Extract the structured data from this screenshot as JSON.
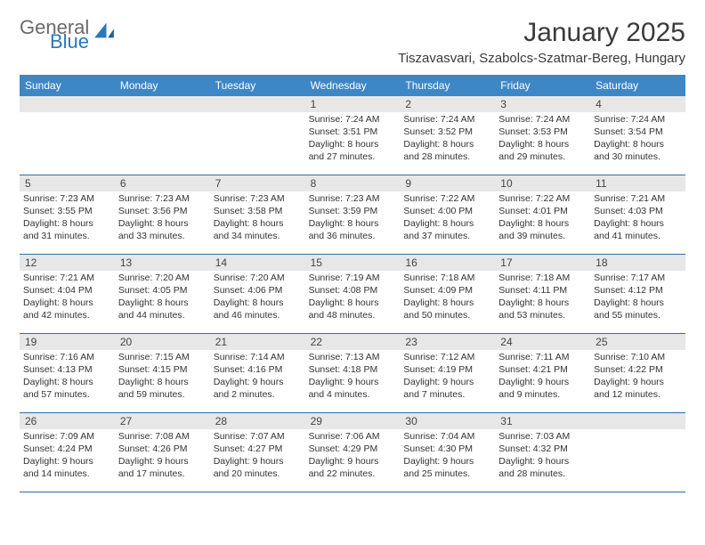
{
  "brand": {
    "word1": "General",
    "word2": "Blue"
  },
  "colors": {
    "accent": "#3d87c7",
    "header_text": "#ffffff",
    "daynum_bg": "#e7e7e7",
    "rule": "#2e6da4",
    "logo_gray": "#6a6a6a",
    "logo_blue": "#2a77bd"
  },
  "title": "January 2025",
  "location": "Tiszavasvari, Szabolcs-Szatmar-Bereg, Hungary",
  "dow": [
    "Sunday",
    "Monday",
    "Tuesday",
    "Wednesday",
    "Thursday",
    "Friday",
    "Saturday"
  ],
  "weeks": [
    [
      {
        "n": "",
        "lines": []
      },
      {
        "n": "",
        "lines": []
      },
      {
        "n": "",
        "lines": []
      },
      {
        "n": "1",
        "lines": [
          "Sunrise: 7:24 AM",
          "Sunset: 3:51 PM",
          "Daylight: 8 hours",
          "and 27 minutes."
        ]
      },
      {
        "n": "2",
        "lines": [
          "Sunrise: 7:24 AM",
          "Sunset: 3:52 PM",
          "Daylight: 8 hours",
          "and 28 minutes."
        ]
      },
      {
        "n": "3",
        "lines": [
          "Sunrise: 7:24 AM",
          "Sunset: 3:53 PM",
          "Daylight: 8 hours",
          "and 29 minutes."
        ]
      },
      {
        "n": "4",
        "lines": [
          "Sunrise: 7:24 AM",
          "Sunset: 3:54 PM",
          "Daylight: 8 hours",
          "and 30 minutes."
        ]
      }
    ],
    [
      {
        "n": "5",
        "lines": [
          "Sunrise: 7:23 AM",
          "Sunset: 3:55 PM",
          "Daylight: 8 hours",
          "and 31 minutes."
        ]
      },
      {
        "n": "6",
        "lines": [
          "Sunrise: 7:23 AM",
          "Sunset: 3:56 PM",
          "Daylight: 8 hours",
          "and 33 minutes."
        ]
      },
      {
        "n": "7",
        "lines": [
          "Sunrise: 7:23 AM",
          "Sunset: 3:58 PM",
          "Daylight: 8 hours",
          "and 34 minutes."
        ]
      },
      {
        "n": "8",
        "lines": [
          "Sunrise: 7:23 AM",
          "Sunset: 3:59 PM",
          "Daylight: 8 hours",
          "and 36 minutes."
        ]
      },
      {
        "n": "9",
        "lines": [
          "Sunrise: 7:22 AM",
          "Sunset: 4:00 PM",
          "Daylight: 8 hours",
          "and 37 minutes."
        ]
      },
      {
        "n": "10",
        "lines": [
          "Sunrise: 7:22 AM",
          "Sunset: 4:01 PM",
          "Daylight: 8 hours",
          "and 39 minutes."
        ]
      },
      {
        "n": "11",
        "lines": [
          "Sunrise: 7:21 AM",
          "Sunset: 4:03 PM",
          "Daylight: 8 hours",
          "and 41 minutes."
        ]
      }
    ],
    [
      {
        "n": "12",
        "lines": [
          "Sunrise: 7:21 AM",
          "Sunset: 4:04 PM",
          "Daylight: 8 hours",
          "and 42 minutes."
        ]
      },
      {
        "n": "13",
        "lines": [
          "Sunrise: 7:20 AM",
          "Sunset: 4:05 PM",
          "Daylight: 8 hours",
          "and 44 minutes."
        ]
      },
      {
        "n": "14",
        "lines": [
          "Sunrise: 7:20 AM",
          "Sunset: 4:06 PM",
          "Daylight: 8 hours",
          "and 46 minutes."
        ]
      },
      {
        "n": "15",
        "lines": [
          "Sunrise: 7:19 AM",
          "Sunset: 4:08 PM",
          "Daylight: 8 hours",
          "and 48 minutes."
        ]
      },
      {
        "n": "16",
        "lines": [
          "Sunrise: 7:18 AM",
          "Sunset: 4:09 PM",
          "Daylight: 8 hours",
          "and 50 minutes."
        ]
      },
      {
        "n": "17",
        "lines": [
          "Sunrise: 7:18 AM",
          "Sunset: 4:11 PM",
          "Daylight: 8 hours",
          "and 53 minutes."
        ]
      },
      {
        "n": "18",
        "lines": [
          "Sunrise: 7:17 AM",
          "Sunset: 4:12 PM",
          "Daylight: 8 hours",
          "and 55 minutes."
        ]
      }
    ],
    [
      {
        "n": "19",
        "lines": [
          "Sunrise: 7:16 AM",
          "Sunset: 4:13 PM",
          "Daylight: 8 hours",
          "and 57 minutes."
        ]
      },
      {
        "n": "20",
        "lines": [
          "Sunrise: 7:15 AM",
          "Sunset: 4:15 PM",
          "Daylight: 8 hours",
          "and 59 minutes."
        ]
      },
      {
        "n": "21",
        "lines": [
          "Sunrise: 7:14 AM",
          "Sunset: 4:16 PM",
          "Daylight: 9 hours",
          "and 2 minutes."
        ]
      },
      {
        "n": "22",
        "lines": [
          "Sunrise: 7:13 AM",
          "Sunset: 4:18 PM",
          "Daylight: 9 hours",
          "and 4 minutes."
        ]
      },
      {
        "n": "23",
        "lines": [
          "Sunrise: 7:12 AM",
          "Sunset: 4:19 PM",
          "Daylight: 9 hours",
          "and 7 minutes."
        ]
      },
      {
        "n": "24",
        "lines": [
          "Sunrise: 7:11 AM",
          "Sunset: 4:21 PM",
          "Daylight: 9 hours",
          "and 9 minutes."
        ]
      },
      {
        "n": "25",
        "lines": [
          "Sunrise: 7:10 AM",
          "Sunset: 4:22 PM",
          "Daylight: 9 hours",
          "and 12 minutes."
        ]
      }
    ],
    [
      {
        "n": "26",
        "lines": [
          "Sunrise: 7:09 AM",
          "Sunset: 4:24 PM",
          "Daylight: 9 hours",
          "and 14 minutes."
        ]
      },
      {
        "n": "27",
        "lines": [
          "Sunrise: 7:08 AM",
          "Sunset: 4:26 PM",
          "Daylight: 9 hours",
          "and 17 minutes."
        ]
      },
      {
        "n": "28",
        "lines": [
          "Sunrise: 7:07 AM",
          "Sunset: 4:27 PM",
          "Daylight: 9 hours",
          "and 20 minutes."
        ]
      },
      {
        "n": "29",
        "lines": [
          "Sunrise: 7:06 AM",
          "Sunset: 4:29 PM",
          "Daylight: 9 hours",
          "and 22 minutes."
        ]
      },
      {
        "n": "30",
        "lines": [
          "Sunrise: 7:04 AM",
          "Sunset: 4:30 PM",
          "Daylight: 9 hours",
          "and 25 minutes."
        ]
      },
      {
        "n": "31",
        "lines": [
          "Sunrise: 7:03 AM",
          "Sunset: 4:32 PM",
          "Daylight: 9 hours",
          "and 28 minutes."
        ]
      },
      {
        "n": "",
        "lines": []
      }
    ]
  ]
}
